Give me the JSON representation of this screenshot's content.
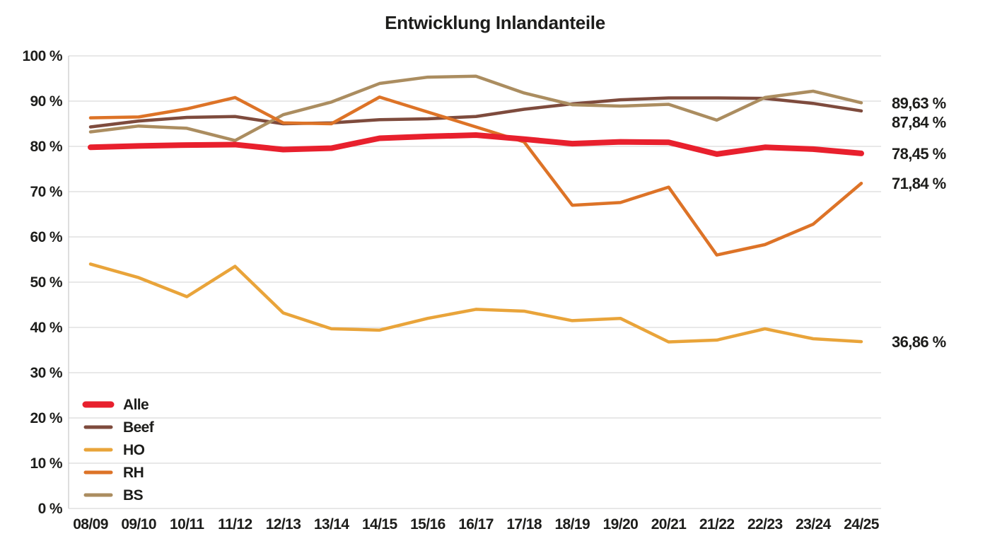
{
  "title": "Entwicklung Inlandanteile",
  "chart_data": {
    "type": "line",
    "title": "Entwicklung Inlandanteile",
    "categories": [
      "08/09",
      "09/10",
      "10/11",
      "11/12",
      "12/13",
      "13/14",
      "14/15",
      "15/16",
      "16/17",
      "17/18",
      "18/19",
      "19/20",
      "20/21",
      "21/22",
      "22/23",
      "23/24",
      "24/25"
    ],
    "series": [
      {
        "name": "Alle",
        "color": "#e8202d",
        "stroke_width": 8,
        "end_label": "78,45 %",
        "values": [
          79.8,
          80.1,
          80.3,
          80.4,
          79.3,
          79.6,
          81.8,
          82.2,
          82.5,
          81.6,
          80.6,
          81.0,
          80.9,
          78.3,
          79.8,
          79.4,
          78.45
        ]
      },
      {
        "name": "Beef",
        "color": "#7e4b3d",
        "stroke_width": 4.5,
        "end_label": "87,84 %",
        "values": [
          84.3,
          85.6,
          86.4,
          86.6,
          85.0,
          85.2,
          85.9,
          86.1,
          86.6,
          88.2,
          89.4,
          90.3,
          90.7,
          90.7,
          90.6,
          89.5,
          87.84
        ]
      },
      {
        "name": "HO",
        "color": "#e9a43a",
        "stroke_width": 4.5,
        "end_label": "36,86 %",
        "values": [
          54.0,
          51.0,
          46.8,
          53.5,
          43.2,
          39.7,
          39.4,
          42.0,
          44.0,
          43.6,
          41.5,
          42.0,
          36.8,
          37.2,
          39.7,
          37.5,
          36.86
        ]
      },
      {
        "name": "RH",
        "color": "#dd7327",
        "stroke_width": 4.5,
        "end_label": "71,84 %",
        "values": [
          86.3,
          86.5,
          88.3,
          90.8,
          85.2,
          85.0,
          90.9,
          87.6,
          84.3,
          81.0,
          67.0,
          67.6,
          71.0,
          56.0,
          58.3,
          62.8,
          71.84
        ]
      },
      {
        "name": "BS",
        "color": "#ab8d60",
        "stroke_width": 4.5,
        "end_label": "89,63 %",
        "values": [
          83.2,
          84.5,
          84.0,
          81.3,
          87.0,
          89.8,
          93.9,
          95.3,
          95.5,
          91.8,
          89.2,
          88.9,
          89.3,
          85.8,
          90.8,
          92.2,
          89.63
        ]
      }
    ],
    "draw_order": [
      "HO",
      "Beef",
      "BS",
      "RH",
      "Alle"
    ],
    "legend_order": [
      "Alle",
      "Beef",
      "HO",
      "RH",
      "BS"
    ],
    "legend_position": "bottom-left",
    "xlabel": "",
    "ylabel": "",
    "ylim": [
      0,
      100
    ],
    "ytick_step": 10,
    "ytick_suffix": " %",
    "grid": true,
    "grid_color": "#d9d9d9",
    "axis_line_color": "#c8c8c8",
    "text_color": "#1d1d1b"
  }
}
